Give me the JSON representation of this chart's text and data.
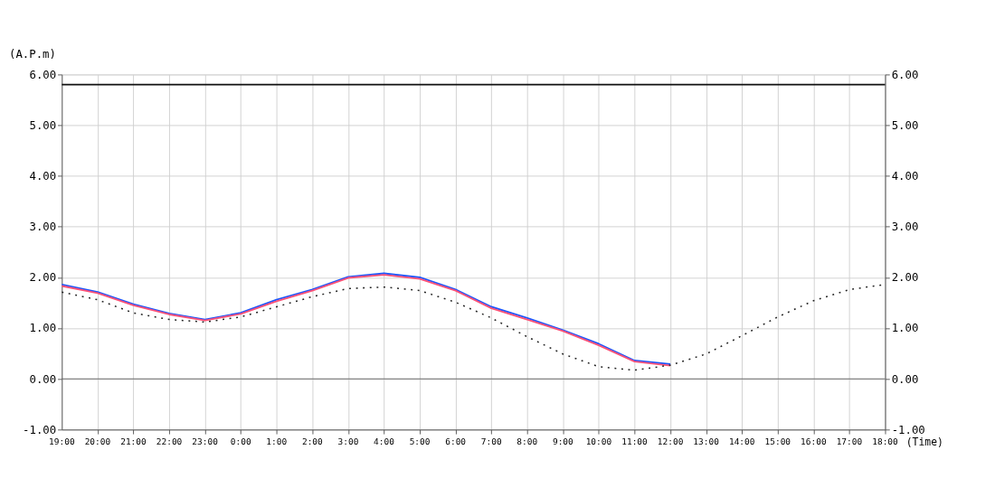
{
  "chart_data": {
    "type": "line",
    "ylabel": "(A.P.m)",
    "xlabel": "(Time)",
    "categories": [
      "19:00",
      "20:00",
      "21:00",
      "22:00",
      "23:00",
      "0:00",
      "1:00",
      "2:00",
      "3:00",
      "4:00",
      "5:00",
      "6:00",
      "7:00",
      "8:00",
      "9:00",
      "10:00",
      "11:00",
      "12:00",
      "13:00",
      "14:00",
      "15:00",
      "16:00",
      "17:00",
      "18:00"
    ],
    "series": [
      {
        "color": "#1a56ff",
        "line_style": "solid",
        "values": [
          1.86,
          1.71,
          1.47,
          1.29,
          1.17,
          1.3,
          1.56,
          1.76,
          2.01,
          2.08,
          2.0,
          1.76,
          1.42,
          1.2,
          0.96,
          0.69,
          0.36,
          0.29,
          null,
          null,
          null,
          null,
          null,
          null
        ]
      },
      {
        "color": "#ff5277",
        "line_style": "solid",
        "values": [
          1.83,
          1.69,
          1.45,
          1.27,
          1.15,
          1.28,
          1.53,
          1.74,
          1.99,
          2.05,
          1.97,
          1.74,
          1.39,
          1.17,
          0.94,
          0.66,
          0.34,
          0.26,
          null,
          null,
          null,
          null,
          null,
          null
        ]
      },
      {
        "color": "#222222",
        "line_style": "dotted",
        "values": [
          1.71,
          1.56,
          1.3,
          1.17,
          1.12,
          1.22,
          1.42,
          1.62,
          1.78,
          1.81,
          1.74,
          1.51,
          1.2,
          0.83,
          0.49,
          0.24,
          0.17,
          0.27,
          0.49,
          0.85,
          1.22,
          1.54,
          1.76,
          1.86
        ]
      }
    ],
    "ylim": [
      -1,
      6
    ],
    "yticks": [
      {
        "value": -1,
        "label": "-1.00"
      },
      {
        "value": 0,
        "label": "0.00"
      },
      {
        "value": 1,
        "label": "1.00"
      },
      {
        "value": 2,
        "label": "2.00"
      },
      {
        "value": 3,
        "label": "3.00"
      },
      {
        "value": 4,
        "label": "4.00"
      },
      {
        "value": 5,
        "label": "5.00"
      },
      {
        "value": 6,
        "label": "6.00"
      }
    ],
    "y2lim": [
      -1,
      6
    ],
    "y2ticks": [
      {
        "value": -1,
        "label": "-1.00"
      },
      {
        "value": 0,
        "label": "0.00"
      },
      {
        "value": 1,
        "label": "1.00"
      },
      {
        "value": 2,
        "label": "2.00"
      },
      {
        "value": 3,
        "label": "3.00"
      },
      {
        "value": 4,
        "label": "4.00"
      },
      {
        "value": 5,
        "label": "5.00"
      },
      {
        "value": 6,
        "label": "6.00"
      }
    ],
    "ref_lines": [
      {
        "axis": "y",
        "value": 5.8,
        "color": "#111111"
      },
      {
        "axis": "y",
        "value": 0,
        "color": "#666666"
      }
    ],
    "grid": true,
    "marker": "none"
  }
}
